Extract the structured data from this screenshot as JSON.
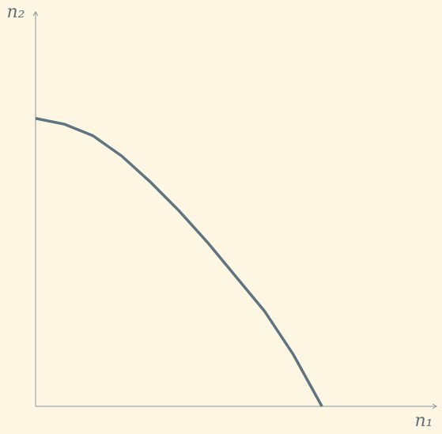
{
  "chart_data": {
    "type": "line",
    "x_label": "n₁",
    "y_label": "n₂",
    "x": [
      0,
      0.1,
      0.2,
      0.3,
      0.4,
      0.5,
      0.6,
      0.7,
      0.8,
      0.9,
      0.95,
      1
    ],
    "series": [
      {
        "color": "#5f7480",
        "values": [
          1,
          0.98,
          0.94,
          0.87,
          0.78,
          0.68,
          0.57,
          0.45,
          0.33,
          0.18,
          0.09,
          0
        ]
      }
    ],
    "xlim": [
      0,
      1.4
    ],
    "ylim": [
      0,
      1.37
    ],
    "axis_color": "#8a9498"
  }
}
